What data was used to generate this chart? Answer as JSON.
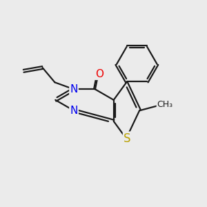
{
  "bg_color": "#ebebeb",
  "bond_color": "#1a1a1a",
  "N_color": "#0000ee",
  "O_color": "#ee0000",
  "S_color": "#b8a000",
  "bond_width": 1.6,
  "font_size_atom": 11,
  "fig_bg": "#ebebeb",
  "xlim": [
    0,
    10
  ],
  "ylim": [
    0,
    10
  ]
}
